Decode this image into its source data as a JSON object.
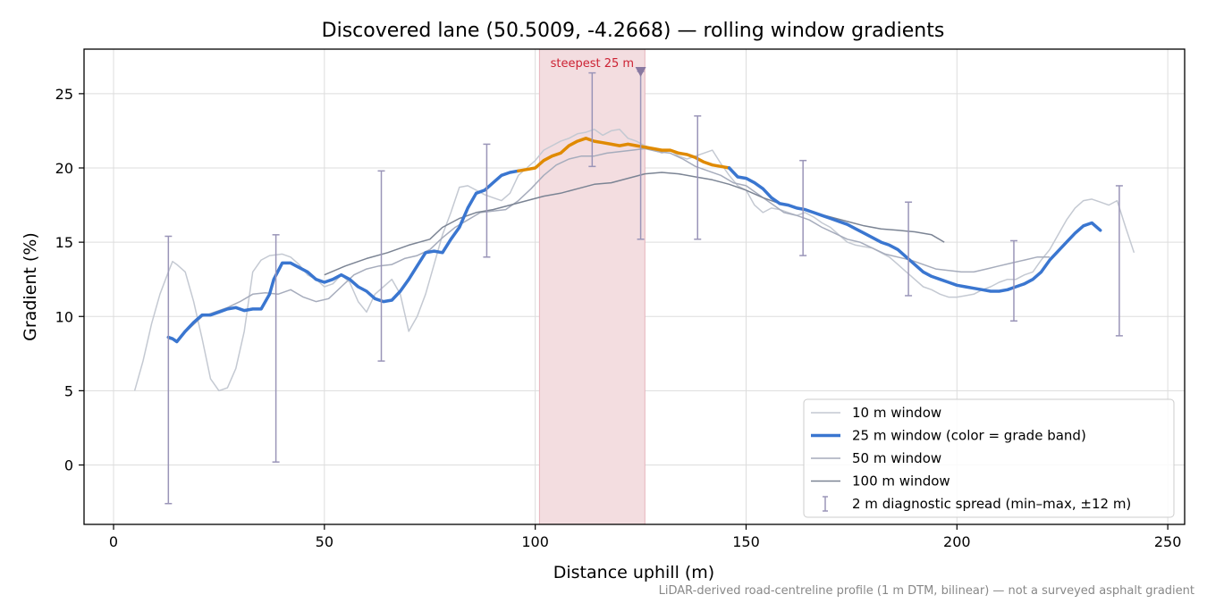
{
  "chart_data": {
    "type": "line",
    "title": "Discovered lane (50.5009, -4.2668) — rolling window gradients",
    "xlabel": "Distance uphill (m)",
    "ylabel": "Gradient (%)",
    "xlim": [
      -7,
      254
    ],
    "ylim": [
      -4,
      28
    ],
    "x_ticks": [
      0,
      50,
      100,
      150,
      200,
      250
    ],
    "y_ticks": [
      0,
      5,
      10,
      15,
      20,
      25
    ],
    "grid": true,
    "legend_position": "lower-right",
    "footnote": "LiDAR-derived road-centreline profile (1 m DTM, bilinear) — not a surveyed asphalt gradient",
    "highlight": {
      "x_range": [
        101,
        126
      ],
      "label": "steepest 25 m",
      "marker": {
        "x": 125,
        "y": 26.5
      },
      "color": "#f3dde0"
    },
    "legend": [
      {
        "label": "10 m window",
        "style": "line",
        "color": "#c4c9d2",
        "width": 1.5
      },
      {
        "label": "25 m window (color = grade band)",
        "style": "line",
        "color": "#3a76d0",
        "width": 3.5
      },
      {
        "label": "50 m window",
        "style": "line",
        "color": "#a6acbc",
        "width": 1.5
      },
      {
        "label": "100 m window",
        "style": "line",
        "color": "#7b8494",
        "width": 1.5
      },
      {
        "label": "2 m diagnostic spread (min–max, ±12 m)",
        "style": "errorbar",
        "color": "#9a95b8",
        "width": 1.5
      }
    ],
    "series": [
      {
        "name": "10 m window",
        "color": "#c4c9d2",
        "width": 1.5,
        "x": [
          5,
          7,
          9,
          11,
          13,
          14,
          15,
          17,
          19,
          21,
          23,
          25,
          27,
          29,
          31,
          33,
          35,
          37,
          40,
          42,
          44,
          46,
          48,
          50,
          52,
          54,
          56,
          58,
          60,
          62,
          64,
          66,
          68,
          70,
          72,
          74,
          76,
          78,
          80,
          82,
          84,
          86,
          88,
          90,
          92,
          94,
          96,
          98,
          100,
          102,
          104,
          106,
          108,
          110,
          112,
          114,
          116,
          118,
          120,
          122,
          124,
          126,
          128,
          130,
          132,
          134,
          136,
          138,
          140,
          142,
          144,
          146,
          148,
          150,
          152,
          154,
          156,
          158,
          160,
          162,
          164,
          166,
          168,
          170,
          172,
          174,
          176,
          178,
          180,
          182,
          184,
          186,
          188,
          190,
          192,
          194,
          196,
          198,
          200,
          202,
          204,
          206,
          208,
          210,
          212,
          214,
          216,
          218,
          220,
          222,
          224,
          226,
          228,
          230,
          232,
          234,
          236,
          238,
          240,
          242
        ],
        "y": [
          5.0,
          7.0,
          9.5,
          11.5,
          13.0,
          13.7,
          13.5,
          13.0,
          11.0,
          8.5,
          5.8,
          5.0,
          5.2,
          6.5,
          9.0,
          13.0,
          13.8,
          14.1,
          14.2,
          14.0,
          13.5,
          12.8,
          12.5,
          12.0,
          12.2,
          12.8,
          12.3,
          11.0,
          10.3,
          11.5,
          12.0,
          12.5,
          11.5,
          9.0,
          10.0,
          11.5,
          13.5,
          15.5,
          17.0,
          18.7,
          18.8,
          18.5,
          18.2,
          18.0,
          17.8,
          18.3,
          19.5,
          20.0,
          20.5,
          21.2,
          21.5,
          21.8,
          22.0,
          22.3,
          22.4,
          22.6,
          22.2,
          22.5,
          22.6,
          22.0,
          21.8,
          21.5,
          21.3,
          21.0,
          21.2,
          20.8,
          20.6,
          20.8,
          21.0,
          21.2,
          20.3,
          19.5,
          18.8,
          18.5,
          17.5,
          17.0,
          17.3,
          17.2,
          17.0,
          16.8,
          17.0,
          16.7,
          16.3,
          16.0,
          15.5,
          15.0,
          14.8,
          14.7,
          14.6,
          14.3,
          14.0,
          13.5,
          13.0,
          12.5,
          12.0,
          11.8,
          11.5,
          11.3,
          11.3,
          11.4,
          11.5,
          11.8,
          12.0,
          12.3,
          12.5,
          12.5,
          12.8,
          13.0,
          13.8,
          14.5,
          15.5,
          16.5,
          17.3,
          17.8,
          17.9,
          17.7,
          17.5,
          17.8,
          16.0,
          14.3
        ]
      },
      {
        "name": "50 m window",
        "color": "#a6acbc",
        "width": 1.5,
        "x": [
          13,
          15,
          18,
          21,
          24,
          27,
          30,
          33,
          36,
          39,
          42,
          45,
          48,
          51,
          54,
          57,
          60,
          63,
          66,
          69,
          72,
          75,
          78,
          81,
          84,
          87,
          90,
          93,
          96,
          99,
          102,
          105,
          108,
          111,
          114,
          117,
          120,
          123,
          126,
          129,
          132,
          135,
          138,
          141,
          144,
          147,
          150,
          153,
          156,
          159,
          162,
          165,
          168,
          171,
          174,
          177,
          180,
          183,
          186,
          189,
          192,
          195,
          198,
          201,
          204,
          207,
          210,
          213,
          216,
          219,
          222
        ],
        "y": [
          8.5,
          8.4,
          9.2,
          10.0,
          10.3,
          10.6,
          11.0,
          11.5,
          11.6,
          11.5,
          11.8,
          11.3,
          11.0,
          11.2,
          12.0,
          12.8,
          13.2,
          13.4,
          13.5,
          13.9,
          14.1,
          14.5,
          15.3,
          16.0,
          16.5,
          17.0,
          17.1,
          17.2,
          17.8,
          18.6,
          19.5,
          20.2,
          20.6,
          20.8,
          20.8,
          21.0,
          21.1,
          21.2,
          21.3,
          21.1,
          21.0,
          20.6,
          20.1,
          19.8,
          19.5,
          19.0,
          18.8,
          18.2,
          17.6,
          17.0,
          16.8,
          16.5,
          16.0,
          15.6,
          15.2,
          15.0,
          14.6,
          14.2,
          14.0,
          13.8,
          13.5,
          13.2,
          13.1,
          13.0,
          13.0,
          13.2,
          13.4,
          13.6,
          13.8,
          14.0,
          14.0
        ]
      },
      {
        "name": "100 m window",
        "color": "#7b8494",
        "width": 1.5,
        "x": [
          50,
          55,
          60,
          65,
          70,
          75,
          78,
          82,
          86,
          90,
          94,
          98,
          102,
          106,
          110,
          114,
          118,
          122,
          126,
          130,
          134,
          138,
          142,
          146,
          150,
          154,
          158,
          162,
          166,
          170,
          174,
          178,
          182,
          186,
          190,
          194,
          197
        ],
        "y": [
          12.8,
          13.4,
          13.9,
          14.3,
          14.8,
          15.2,
          16.0,
          16.6,
          17.0,
          17.2,
          17.5,
          17.8,
          18.1,
          18.3,
          18.6,
          18.9,
          19.0,
          19.3,
          19.6,
          19.7,
          19.6,
          19.4,
          19.2,
          18.9,
          18.5,
          18.0,
          17.6,
          17.3,
          17.0,
          16.7,
          16.4,
          16.1,
          15.9,
          15.8,
          15.7,
          15.5,
          15.0
        ]
      },
      {
        "name": "25 m window",
        "color": "#3a76d0",
        "highlight_color": "#e08a00",
        "highlight_x_range": [
          97,
          146
        ],
        "width": 3.5,
        "x": [
          13,
          14,
          15,
          17,
          19,
          21,
          23,
          25,
          27,
          29,
          31,
          33,
          35,
          37,
          38,
          40,
          42,
          44,
          46,
          48,
          50,
          52,
          54,
          56,
          58,
          60,
          62,
          64,
          66,
          68,
          70,
          72,
          74,
          76,
          78,
          80,
          82,
          84,
          86,
          88,
          90,
          92,
          94,
          96,
          98,
          100,
          102,
          104,
          106,
          108,
          110,
          112,
          114,
          116,
          118,
          120,
          122,
          124,
          126,
          128,
          130,
          132,
          134,
          136,
          138,
          140,
          142,
          144,
          146,
          148,
          150,
          152,
          154,
          156,
          158,
          160,
          162,
          164,
          166,
          168,
          170,
          172,
          174,
          176,
          178,
          180,
          182,
          184,
          186,
          188,
          190,
          192,
          194,
          196,
          198,
          200,
          202,
          204,
          206,
          208,
          210,
          212,
          214,
          216,
          218,
          220,
          222,
          224,
          226,
          228,
          230,
          232,
          234
        ],
        "y": [
          8.6,
          8.5,
          8.3,
          9.0,
          9.6,
          10.1,
          10.1,
          10.3,
          10.5,
          10.6,
          10.4,
          10.5,
          10.5,
          11.5,
          12.5,
          13.6,
          13.6,
          13.3,
          13.0,
          12.5,
          12.3,
          12.5,
          12.8,
          12.5,
          12.0,
          11.7,
          11.2,
          11.0,
          11.1,
          11.7,
          12.5,
          13.4,
          14.3,
          14.4,
          14.3,
          15.2,
          16.0,
          17.3,
          18.3,
          18.5,
          19.0,
          19.5,
          19.7,
          19.8,
          19.9,
          20.0,
          20.5,
          20.8,
          21.0,
          21.5,
          21.8,
          22.0,
          21.8,
          21.7,
          21.6,
          21.5,
          21.6,
          21.5,
          21.4,
          21.3,
          21.2,
          21.2,
          21.0,
          20.9,
          20.7,
          20.4,
          20.2,
          20.1,
          20.0,
          19.4,
          19.3,
          19.0,
          18.6,
          18.0,
          17.6,
          17.5,
          17.3,
          17.2,
          17.0,
          16.8,
          16.6,
          16.4,
          16.2,
          15.9,
          15.6,
          15.3,
          15.0,
          14.8,
          14.5,
          14.0,
          13.5,
          13.0,
          12.7,
          12.5,
          12.3,
          12.1,
          12.0,
          11.9,
          11.8,
          11.7,
          11.7,
          11.8,
          12.0,
          12.2,
          12.5,
          13.0,
          13.8,
          14.4,
          15.0,
          15.6,
          16.1,
          16.3,
          15.8
        ]
      }
    ],
    "error_bars": {
      "name": "2 m diagnostic spread (min–max, ±12 m)",
      "color": "#9a95b8",
      "points": [
        {
          "x": 13,
          "min": -2.6,
          "max": 15.4
        },
        {
          "x": 38.5,
          "min": 0.2,
          "max": 15.5
        },
        {
          "x": 63.5,
          "min": 7.0,
          "max": 19.8
        },
        {
          "x": 88.5,
          "min": 14.0,
          "max": 21.6
        },
        {
          "x": 113.5,
          "min": 20.1,
          "max": 26.4
        },
        {
          "x": 125,
          "min": 15.2,
          "max": 26.5
        },
        {
          "x": 138.5,
          "min": 15.2,
          "max": 23.5
        },
        {
          "x": 163.5,
          "min": 14.1,
          "max": 20.5
        },
        {
          "x": 188.5,
          "min": 11.4,
          "max": 17.7
        },
        {
          "x": 213.5,
          "min": 9.7,
          "max": 15.1
        },
        {
          "x": 238.5,
          "min": 8.7,
          "max": 18.8
        }
      ]
    }
  }
}
